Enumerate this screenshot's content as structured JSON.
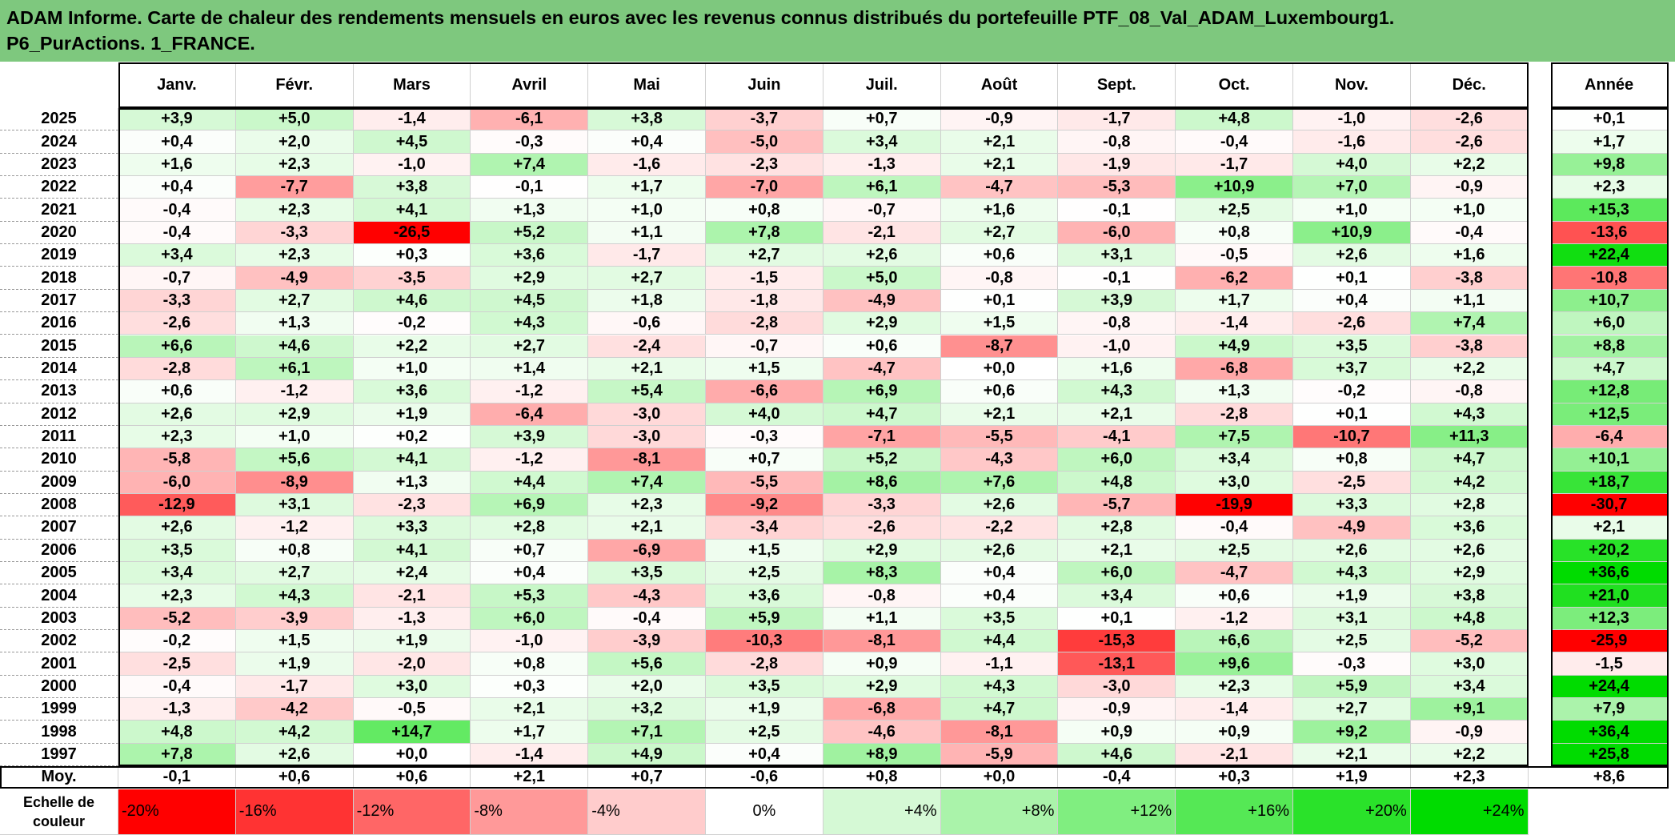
{
  "title_lines": [
    "ADAM Informe. Carte de chaleur des rendements mensuels en euros avec les revenus connus distribués du portefeuille PTF_08_Val_ADAM_Luxembourg1.",
    "P6_PurActions. 1_FRANCE."
  ],
  "table": {
    "columns": [
      "Janv.",
      "Févr.",
      "Mars",
      "Avril",
      "Mai",
      "Juin",
      "Juil.",
      "Août",
      "Sept.",
      "Oct.",
      "Nov.",
      "Déc."
    ],
    "total_column": "Année",
    "rows": [
      {
        "label": "2025",
        "months": [
          "+3,9",
          "+5,0",
          "-1,4",
          "-6,1",
          "+3,8",
          "-3,7",
          "+0,7",
          "-0,9",
          "-1,7",
          "+4,8",
          "-1,0",
          "-2,6"
        ],
        "year": "+0,1"
      },
      {
        "label": "2024",
        "months": [
          "+0,4",
          "+2,0",
          "+4,5",
          "-0,3",
          "+0,4",
          "-5,0",
          "+3,4",
          "+2,1",
          "-0,8",
          "-0,4",
          "-1,6",
          "-2,6"
        ],
        "year": "+1,7"
      },
      {
        "label": "2023",
        "months": [
          "+1,6",
          "+2,3",
          "-1,0",
          "+7,4",
          "-1,6",
          "-2,3",
          "-1,3",
          "+2,1",
          "-1,9",
          "-1,7",
          "+4,0",
          "+2,2"
        ],
        "year": "+9,8"
      },
      {
        "label": "2022",
        "months": [
          "+0,4",
          "-7,7",
          "+3,8",
          "-0,1",
          "+1,7",
          "-7,0",
          "+6,1",
          "-4,7",
          "-5,3",
          "+10,9",
          "+7,0",
          "-0,9"
        ],
        "year": "+2,3"
      },
      {
        "label": "2021",
        "months": [
          "-0,4",
          "+2,3",
          "+4,1",
          "+1,3",
          "+1,0",
          "+0,8",
          "-0,7",
          "+1,6",
          "-0,1",
          "+2,5",
          "+1,0",
          "+1,0"
        ],
        "year": "+15,3"
      },
      {
        "label": "2020",
        "months": [
          "-0,4",
          "-3,3",
          "-26,5",
          "+5,2",
          "+1,1",
          "+7,8",
          "-2,1",
          "+2,7",
          "-6,0",
          "+0,8",
          "+10,9",
          "-0,4"
        ],
        "year": "-13,6"
      },
      {
        "label": "2019",
        "months": [
          "+3,4",
          "+2,3",
          "+0,3",
          "+3,6",
          "-1,7",
          "+2,7",
          "+2,6",
          "+0,6",
          "+3,1",
          "-0,5",
          "+2,6",
          "+1,6"
        ],
        "year": "+22,4"
      },
      {
        "label": "2018",
        "months": [
          "-0,7",
          "-4,9",
          "-3,5",
          "+2,9",
          "+2,7",
          "-1,5",
          "+5,0",
          "-0,8",
          "-0,1",
          "-6,2",
          "+0,1",
          "-3,8"
        ],
        "year": "-10,8"
      },
      {
        "label": "2017",
        "months": [
          "-3,3",
          "+2,7",
          "+4,6",
          "+4,5",
          "+1,8",
          "-1,8",
          "-4,9",
          "+0,1",
          "+3,9",
          "+1,7",
          "+0,4",
          "+1,1"
        ],
        "year": "+10,7"
      },
      {
        "label": "2016",
        "months": [
          "-2,6",
          "+1,3",
          "-0,2",
          "+4,3",
          "-0,6",
          "-2,8",
          "+2,9",
          "+1,5",
          "-0,8",
          "-1,4",
          "-2,6",
          "+7,4"
        ],
        "year": "+6,0"
      },
      {
        "label": "2015",
        "months": [
          "+6,6",
          "+4,6",
          "+2,2",
          "+2,7",
          "-2,4",
          "-0,7",
          "+0,6",
          "-8,7",
          "-1,0",
          "+4,9",
          "+3,5",
          "-3,8"
        ],
        "year": "+8,8"
      },
      {
        "label": "2014",
        "months": [
          "-2,8",
          "+6,1",
          "+1,0",
          "+1,4",
          "+2,1",
          "+1,5",
          "-4,7",
          "+0,0",
          "+1,6",
          "-6,8",
          "+3,7",
          "+2,2"
        ],
        "year": "+4,7"
      },
      {
        "label": "2013",
        "months": [
          "+0,6",
          "-1,2",
          "+3,6",
          "-1,2",
          "+5,4",
          "-6,6",
          "+6,9",
          "+0,6",
          "+4,3",
          "+1,3",
          "-0,2",
          "-0,8"
        ],
        "year": "+12,8"
      },
      {
        "label": "2012",
        "months": [
          "+2,6",
          "+2,9",
          "+1,9",
          "-6,4",
          "-3,0",
          "+4,0",
          "+4,7",
          "+2,1",
          "+2,1",
          "-2,8",
          "+0,1",
          "+4,3"
        ],
        "year": "+12,5"
      },
      {
        "label": "2011",
        "months": [
          "+2,3",
          "+1,0",
          "+0,2",
          "+3,9",
          "-3,0",
          "-0,3",
          "-7,1",
          "-5,5",
          "-4,1",
          "+7,5",
          "-10,7",
          "+11,3"
        ],
        "year": "-6,4"
      },
      {
        "label": "2010",
        "months": [
          "-5,8",
          "+5,6",
          "+4,1",
          "-1,2",
          "-8,1",
          "+0,7",
          "+5,2",
          "-4,3",
          "+6,0",
          "+3,4",
          "+0,8",
          "+4,7"
        ],
        "year": "+10,1"
      },
      {
        "label": "2009",
        "months": [
          "-6,0",
          "-8,9",
          "+1,3",
          "+4,4",
          "+7,4",
          "-5,5",
          "+8,6",
          "+7,6",
          "+4,8",
          "+3,0",
          "-2,5",
          "+4,2"
        ],
        "year": "+18,7"
      },
      {
        "label": "2008",
        "months": [
          "-12,9",
          "+3,1",
          "-2,3",
          "+6,9",
          "+2,3",
          "-9,2",
          "-3,3",
          "+2,6",
          "-5,7",
          "-19,9",
          "+3,3",
          "+2,8"
        ],
        "year": "-30,7"
      },
      {
        "label": "2007",
        "months": [
          "+2,6",
          "-1,2",
          "+3,3",
          "+2,8",
          "+2,1",
          "-3,4",
          "-2,6",
          "-2,2",
          "+2,8",
          "-0,4",
          "-4,9",
          "+3,6"
        ],
        "year": "+2,1"
      },
      {
        "label": "2006",
        "months": [
          "+3,5",
          "+0,8",
          "+4,1",
          "+0,7",
          "-6,9",
          "+1,5",
          "+2,9",
          "+2,6",
          "+2,1",
          "+2,5",
          "+2,6",
          "+2,6"
        ],
        "year": "+20,2"
      },
      {
        "label": "2005",
        "months": [
          "+3,4",
          "+2,7",
          "+2,4",
          "+0,4",
          "+3,5",
          "+2,5",
          "+8,3",
          "+0,4",
          "+6,0",
          "-4,7",
          "+4,3",
          "+2,9"
        ],
        "year": "+36,6"
      },
      {
        "label": "2004",
        "months": [
          "+2,3",
          "+4,3",
          "-2,1",
          "+5,3",
          "-4,3",
          "+3,6",
          "-0,8",
          "+0,4",
          "+3,4",
          "+0,6",
          "+1,9",
          "+3,8"
        ],
        "year": "+21,0"
      },
      {
        "label": "2003",
        "months": [
          "-5,2",
          "-3,9",
          "-1,3",
          "+6,0",
          "-0,4",
          "+5,9",
          "+1,1",
          "+3,5",
          "+0,1",
          "-1,2",
          "+3,1",
          "+4,8"
        ],
        "year": "+12,3"
      },
      {
        "label": "2002",
        "months": [
          "-0,2",
          "+1,5",
          "+1,9",
          "-1,0",
          "-3,9",
          "-10,3",
          "-8,1",
          "+4,4",
          "-15,3",
          "+6,6",
          "+2,5",
          "-5,2"
        ],
        "year": "-25,9"
      },
      {
        "label": "2001",
        "months": [
          "-2,5",
          "+1,9",
          "-2,0",
          "+0,8",
          "+5,6",
          "-2,8",
          "+0,9",
          "-1,1",
          "-13,1",
          "+9,6",
          "-0,3",
          "+3,0"
        ],
        "year": "-1,5"
      },
      {
        "label": "2000",
        "months": [
          "-0,4",
          "-1,7",
          "+3,0",
          "+0,3",
          "+2,0",
          "+3,5",
          "+2,9",
          "+4,3",
          "-3,0",
          "+2,3",
          "+5,9",
          "+3,4"
        ],
        "year": "+24,4"
      },
      {
        "label": "1999",
        "months": [
          "-1,3",
          "-4,2",
          "-0,5",
          "+2,1",
          "+3,2",
          "+1,9",
          "-6,8",
          "+4,7",
          "-0,9",
          "-1,4",
          "+2,7",
          "+9,1"
        ],
        "year": "+7,9"
      },
      {
        "label": "1998",
        "months": [
          "+4,8",
          "+4,2",
          "+14,7",
          "+1,7",
          "+7,1",
          "+2,5",
          "-4,6",
          "-8,1",
          "+0,9",
          "+0,9",
          "+9,2",
          "-0,9"
        ],
        "year": "+36,4"
      },
      {
        "label": "1997",
        "months": [
          "+7,8",
          "+2,6",
          "+0,0",
          "-1,4",
          "+4,9",
          "+0,4",
          "+8,9",
          "-5,9",
          "+4,6",
          "-2,1",
          "+2,1",
          "+2,2"
        ],
        "year": "+25,8"
      }
    ],
    "average": {
      "label": "Moy.",
      "months": [
        "-0,1",
        "+0,6",
        "+0,6",
        "+2,1",
        "+0,7",
        "-0,6",
        "+0,8",
        "+0,0",
        "-0,4",
        "+0,3",
        "+1,9",
        "+2,3"
      ],
      "year": "+8,6"
    }
  },
  "color_scale": {
    "label": "Echelle de couleur",
    "steps": [
      "-20%",
      "-16%",
      "-12%",
      "-8%",
      "-4%",
      "0%",
      "+4%",
      "+8%",
      "+12%",
      "+16%",
      "+20%",
      "+24%"
    ]
  }
}
